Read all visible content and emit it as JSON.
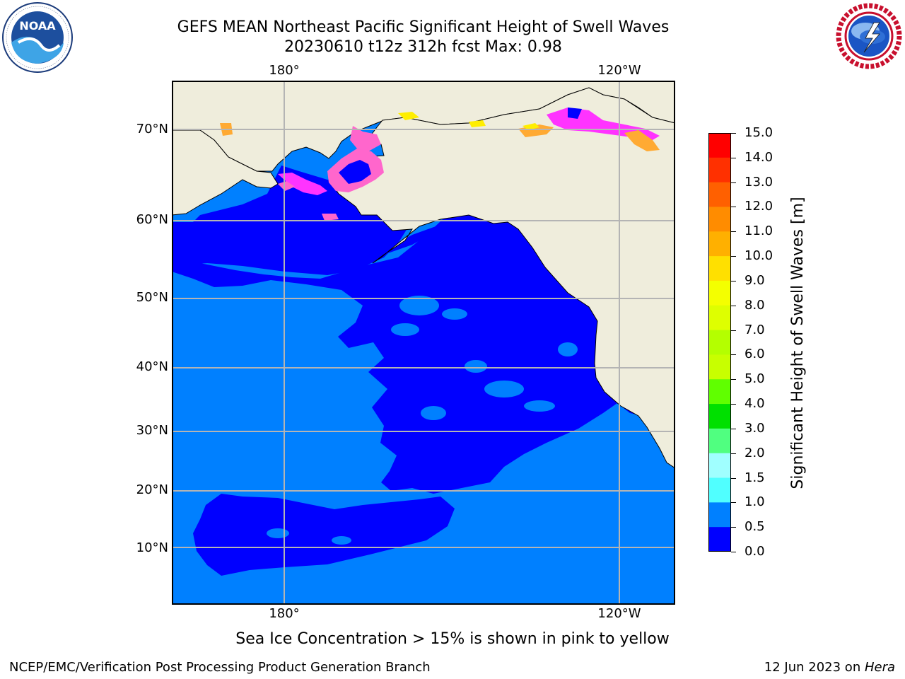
{
  "header": {
    "title_line1": "GEFS MEAN Northeast Pacific Significant Height of Swell Waves",
    "title_line2": "20230610 t12z 312h fcst   Max: 0.98"
  },
  "logos": {
    "left": {
      "name": "noaa-logo",
      "text": "NOAA",
      "ring_text": "NATIONAL OCEANIC AND ATMOSPHERIC ADMINISTRATION · U.S. DEPARTMENT OF COMMERCE"
    },
    "right": {
      "name": "nws-logo",
      "ring_text": "NATIONAL WEATHER SERVICE"
    }
  },
  "map": {
    "lon_labels": [
      "180°",
      "120°W"
    ],
    "lat_labels": [
      "70°N",
      "60°N",
      "50°N",
      "40°N",
      "30°N",
      "20°N",
      "10°N"
    ],
    "colors": {
      "land": "#efeddc",
      "swell_0_0_5": "#0000ff",
      "swell_0_5_1_0": "#0080ff",
      "grid": "#b4b4b4",
      "ice_pink": "#ff66cc",
      "ice_magenta": "#ff33ff",
      "ice_orange": "#ffaa33",
      "ice_yellow": "#ffee00"
    }
  },
  "colorbar": {
    "title": "Significant Height of Swell Waves [m]",
    "ticks": [
      "15.0",
      "14.0",
      "13.0",
      "12.0",
      "11.0",
      "10.0",
      "9.0",
      "8.0",
      "7.0",
      "6.0",
      "5.0",
      "4.0",
      "3.0",
      "2.0",
      "1.5",
      "1.0",
      "0.5",
      "0.0"
    ],
    "colors": [
      "#ff0000",
      "#ff3000",
      "#ff6000",
      "#ff8c00",
      "#ffb000",
      "#ffe000",
      "#f4ff00",
      "#deff00",
      "#b4ff00",
      "#c8ff00",
      "#60ff00",
      "#00e000",
      "#50ff80",
      "#a0ffff",
      "#50ffff",
      "#00ffff",
      "#0080ff",
      "#0000ff"
    ]
  },
  "footer": {
    "note": "Sea Ice Concentration > 15% is shown in pink to yellow",
    "credit": "NCEP/EMC/Verification Post Processing Product Generation Branch",
    "date": "12 Jun 2023 on ",
    "machine": "Hera"
  }
}
